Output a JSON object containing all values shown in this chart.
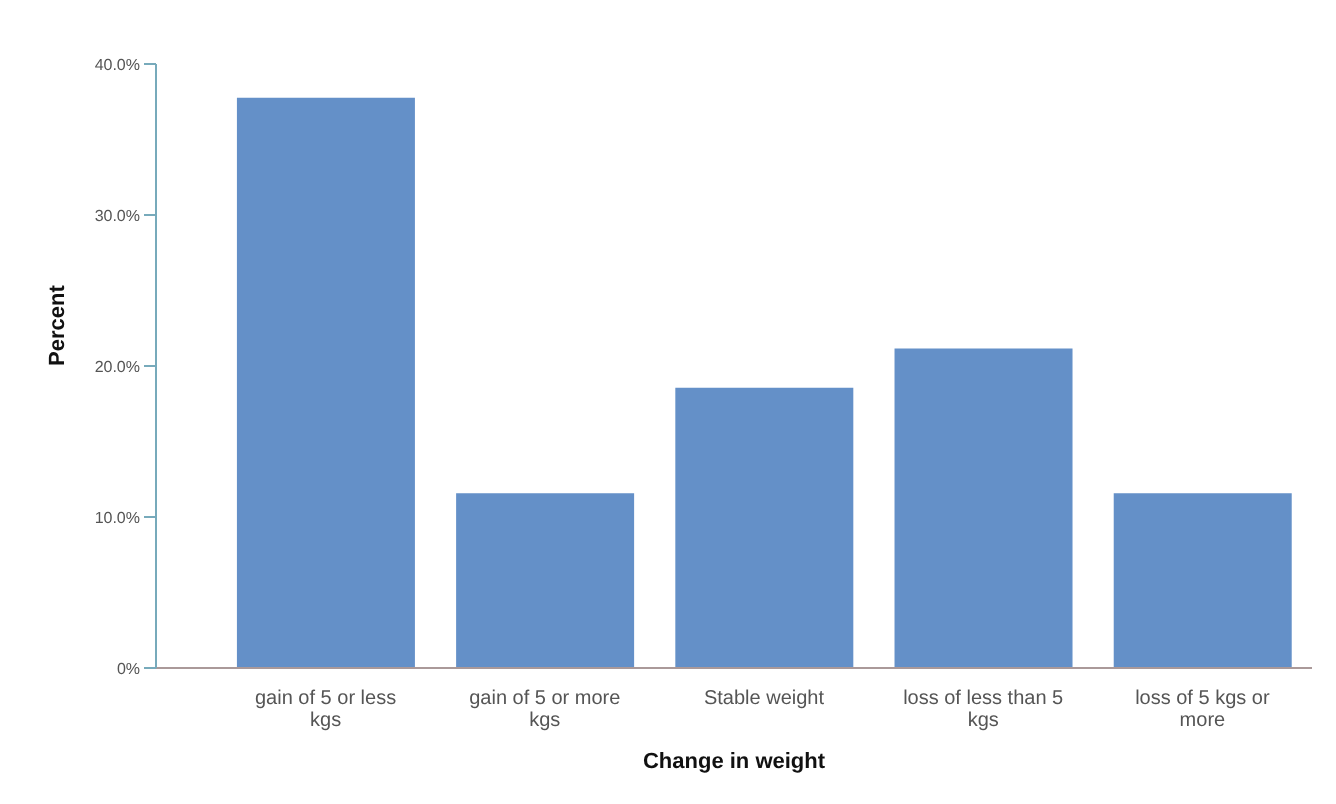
{
  "chart_data": {
    "type": "bar",
    "xlabel": "Change in weight",
    "ylabel": "Percent",
    "categories": [
      "gain of 5 or less kgs",
      "gain of 5 or more kgs",
      "Stable weight",
      "loss of less than 5 kgs",
      "loss of 5 kgs or more"
    ],
    "values": [
      37.7,
      11.5,
      18.5,
      21.1,
      11.5
    ],
    "color": "#6490c8",
    "ylim": [
      0,
      40
    ],
    "yticks": [
      {
        "value": 0,
        "label": "0%"
      },
      {
        "value": 10,
        "label": "10.0%"
      },
      {
        "value": 20,
        "label": "20.0%"
      },
      {
        "value": 30,
        "label": "30.0%"
      },
      {
        "value": 40,
        "label": "40.0%"
      }
    ],
    "grid": false,
    "legend": false
  }
}
